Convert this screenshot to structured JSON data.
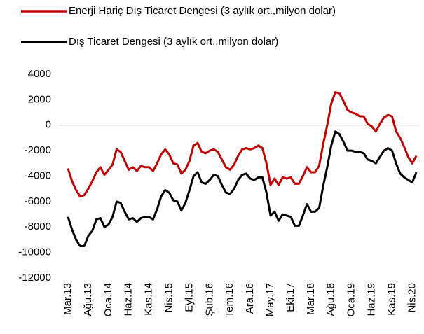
{
  "chart_data": {
    "type": "line",
    "categories": [
      "Mar.13",
      null,
      null,
      null,
      null,
      "Ağu.13",
      null,
      null,
      null,
      null,
      "Oca.14",
      null,
      null,
      null,
      null,
      "Haz.14",
      null,
      null,
      null,
      null,
      "Kas.14",
      null,
      null,
      null,
      null,
      "Nis.15",
      null,
      null,
      null,
      null,
      "Eyl.15",
      null,
      null,
      null,
      null,
      "Şub.16",
      null,
      null,
      null,
      null,
      "Tem.16",
      null,
      null,
      null,
      null,
      "Ara.16",
      null,
      null,
      null,
      null,
      "May.17",
      null,
      null,
      null,
      null,
      "Eki.17",
      null,
      null,
      null,
      null,
      "Mar.18",
      null,
      null,
      null,
      null,
      "Ağu.18",
      null,
      null,
      null,
      null,
      "Oca.19",
      null,
      null,
      null,
      null,
      "Haz.19",
      null,
      null,
      null,
      null,
      "Kas.19",
      null,
      null,
      null,
      null,
      "Nis.20",
      null
    ],
    "series": [
      {
        "name": "Enerji Hariç Dış Ticaret Dengesi (3 aylık ort.,milyon dolar)",
        "color": "#c00000",
        "values": [
          -3400,
          -4400,
          -5100,
          -5600,
          -5500,
          -5000,
          -4400,
          -3700,
          -3300,
          -3900,
          -3500,
          -3100,
          -1900,
          -2100,
          -2800,
          -3500,
          -3300,
          -3600,
          -3200,
          -3300,
          -3300,
          -3600,
          -3000,
          -2300,
          -1900,
          -2300,
          -3000,
          -3100,
          -3800,
          -3500,
          -2800,
          -1600,
          -1400,
          -2100,
          -2200,
          -2000,
          -1900,
          -2100,
          -2700,
          -3300,
          -3500,
          -3100,
          -2400,
          -1900,
          -1800,
          -1900,
          -1800,
          -1600,
          -1800,
          -3000,
          -4700,
          -4200,
          -4700,
          -4100,
          -4200,
          -4100,
          -4600,
          -4600,
          -4000,
          -3300,
          -3700,
          -3700,
          -3200,
          -1500,
          0,
          1700,
          2600,
          2500,
          1900,
          1200,
          1000,
          900,
          700,
          700,
          100,
          -100,
          -500,
          100,
          600,
          800,
          700,
          -500,
          -1000,
          -1700,
          -2500,
          -3000,
          -2400
        ]
      },
      {
        "name": "Dış Ticaret Dengesi (3 aylık ort.,milyon dolar)",
        "color": "#000000",
        "values": [
          -7200,
          -8200,
          -9000,
          -9500,
          -9500,
          -8700,
          -8300,
          -7400,
          -7300,
          -8000,
          -7800,
          -7200,
          -6000,
          -6100,
          -6800,
          -7400,
          -7300,
          -7600,
          -7300,
          -7200,
          -7200,
          -7400,
          -6600,
          -5600,
          -5100,
          -5300,
          -5900,
          -6000,
          -6700,
          -6100,
          -5100,
          -4000,
          -3700,
          -4500,
          -4600,
          -4300,
          -3900,
          -4000,
          -4700,
          -5300,
          -5400,
          -5000,
          -4300,
          -3900,
          -3800,
          -4200,
          -4300,
          -4100,
          -4100,
          -5300,
          -7100,
          -6800,
          -7500,
          -7000,
          -7100,
          -7200,
          -7900,
          -7900,
          -7100,
          -6200,
          -6800,
          -6800,
          -6500,
          -4800,
          -3300,
          -1600,
          -500,
          -700,
          -1300,
          -2000,
          -2000,
          -2100,
          -2100,
          -2200,
          -2700,
          -2800,
          -3000,
          -2500,
          -2000,
          -1800,
          -2000,
          -3000,
          -3800,
          -4100,
          -4300,
          -4500,
          -3700
        ]
      }
    ],
    "ylim": [
      -12000,
      4000
    ],
    "yticks": [
      -12000,
      -10000,
      -8000,
      -6000,
      -4000,
      -2000,
      0,
      2000,
      4000
    ]
  }
}
